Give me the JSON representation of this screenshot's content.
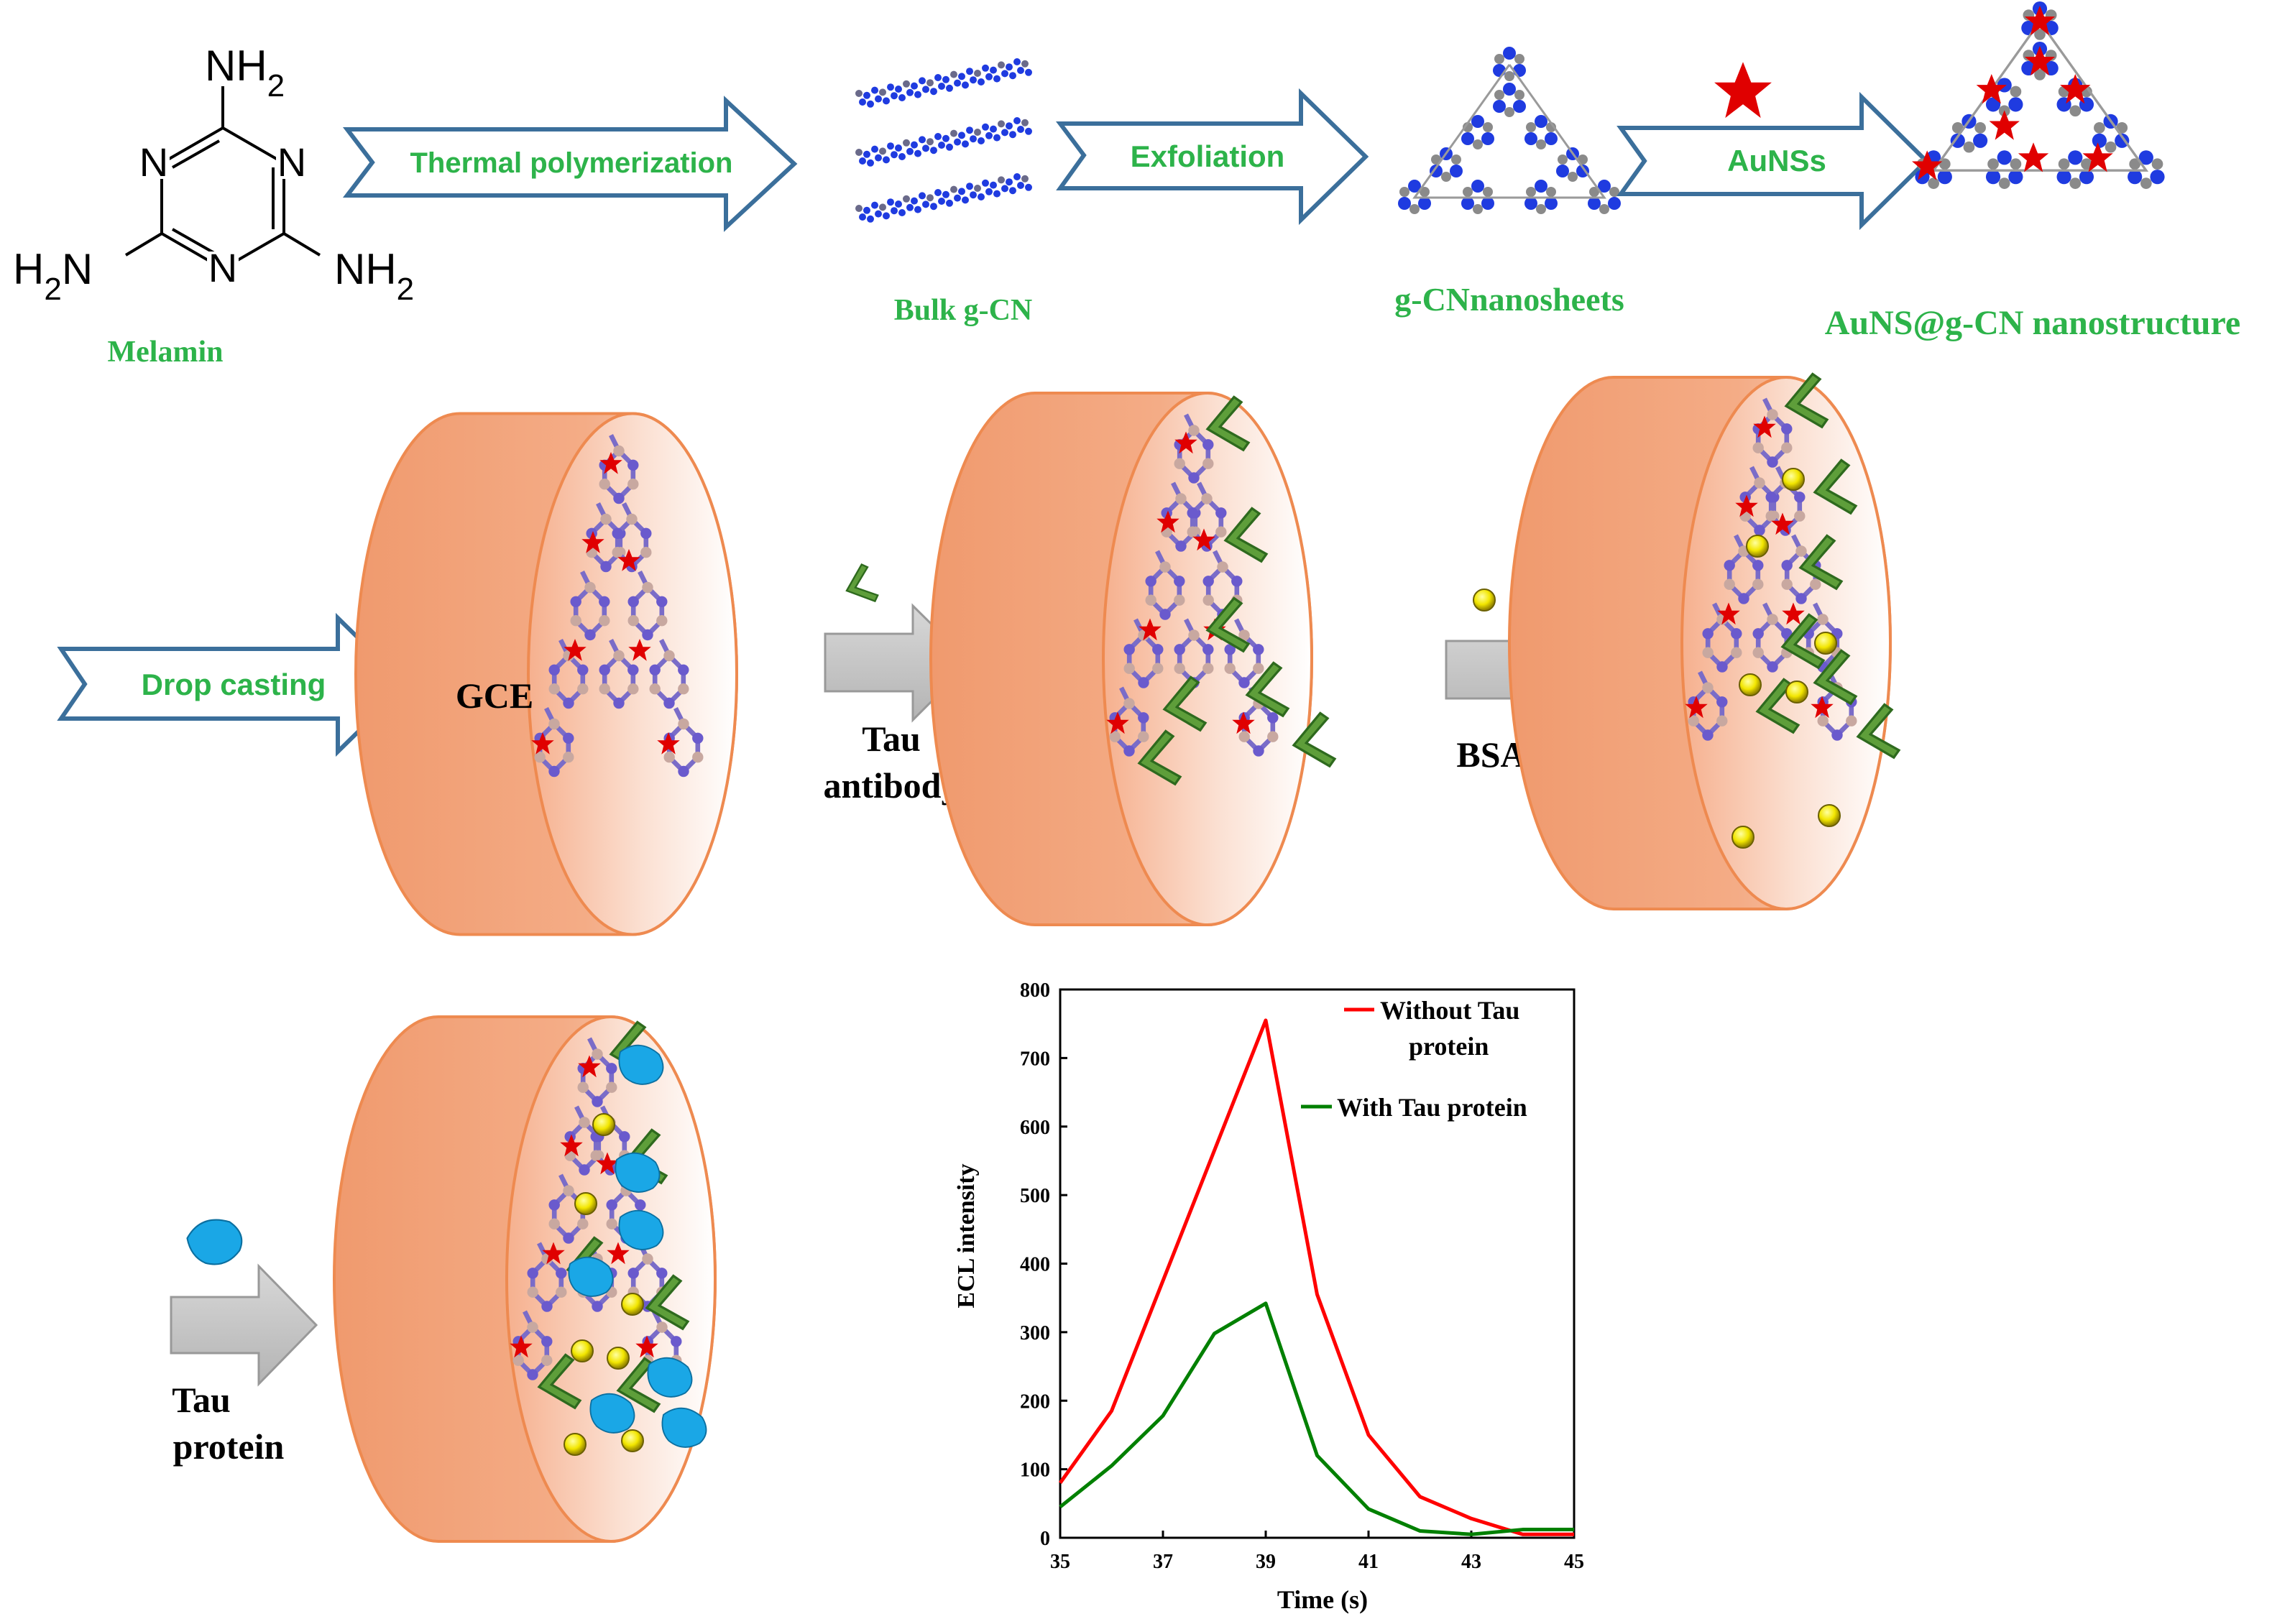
{
  "colors": {
    "green_label": "#2DB34A",
    "arrow_outline": "#3B6F9B",
    "electrode": "#F2A07A",
    "electrode_edge": "#EE8A50",
    "gray_arrow": "#C8C8C8",
    "red": "#FF0000",
    "dark_green": "#008000",
    "atom_blue": "#1F3BE0",
    "atom_gray": "#888888",
    "gold": "#F2E600",
    "drop": "#1AA7E6",
    "antibody": "#5E9E3A"
  },
  "melamine": {
    "name": "Melamin",
    "nh2_top": "NH",
    "nh2_left": "H",
    "nh2_right": "NH",
    "sub2": "2",
    "n_atom": "N",
    "nh_suffix": "N"
  },
  "steps": {
    "thermal": "Thermal polymerization",
    "exfoliation": "Exfoliation",
    "aunss": "AuNSs",
    "drop_casting": "Drop casting"
  },
  "products": {
    "bulk": "Bulk g-CN",
    "nanosheets": "g-CNnanosheets",
    "nanostructure": "AuNS@g-CN nanostructure"
  },
  "electrode": {
    "gce": "GCE",
    "tau_antibody_line1": "Tau",
    "tau_antibody_line2": "antibody",
    "bsa": "BSA",
    "tau_protein_line1": "Tau",
    "tau_protein_line2": "protein"
  },
  "chart_data": {
    "type": "line",
    "xlabel": "Time (s)",
    "ylabel": "ECL intensity",
    "xlim": [
      35,
      45
    ],
    "ylim": [
      0,
      800
    ],
    "x_ticks": [
      35,
      37,
      39,
      41,
      43,
      45
    ],
    "y_ticks": [
      0,
      100,
      200,
      300,
      400,
      500,
      600,
      700,
      800
    ],
    "legend_position": "top-right",
    "series": [
      {
        "name": "Without Tau protein",
        "legend_line1": "Without Tau",
        "legend_line2": "protein",
        "color": "#FF0000",
        "x": [
          35,
          36,
          37,
          38,
          39,
          40,
          41,
          42,
          43,
          44,
          45
        ],
        "values": [
          80,
          185,
          375,
          565,
          755,
          355,
          150,
          60,
          28,
          5,
          5
        ]
      },
      {
        "name": "With Tau protein",
        "legend_line1": "With Tau protein",
        "color": "#008000",
        "x": [
          35,
          36,
          37,
          38,
          39,
          40,
          41,
          42,
          43,
          44,
          45
        ],
        "values": [
          45,
          105,
          178,
          298,
          342,
          120,
          42,
          10,
          5,
          12,
          12
        ]
      }
    ]
  }
}
